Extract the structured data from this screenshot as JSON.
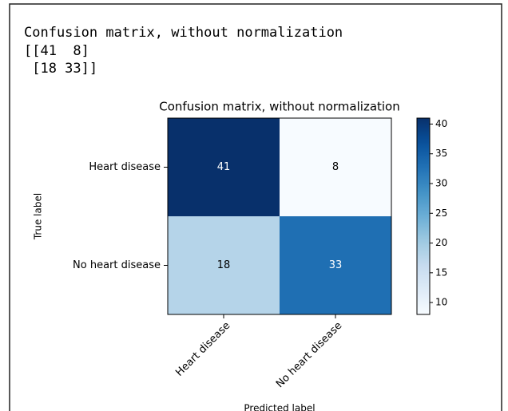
{
  "console": [
    "Confusion matrix, without normalization",
    "[[41  8]",
    " [18 33]]"
  ],
  "chart_data": {
    "type": "heatmap",
    "title": "Confusion matrix, without normalization",
    "x_categories": [
      "Heart disease",
      "No heart disease"
    ],
    "y_categories": [
      "Heart disease",
      "No heart disease"
    ],
    "values": [
      [
        41,
        8
      ],
      [
        18,
        33
      ]
    ],
    "xlabel": "Predicted label",
    "ylabel": "True label",
    "colormap": "Blues",
    "clim": [
      8,
      41
    ],
    "cticks": [
      10,
      15,
      20,
      25,
      30,
      35,
      40
    ]
  }
}
